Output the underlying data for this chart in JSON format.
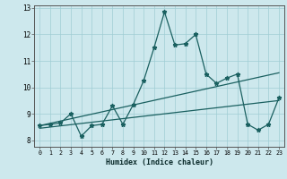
{
  "xlabel": "Humidex (Indice chaleur)",
  "xlim": [
    -0.5,
    23.5
  ],
  "ylim": [
    7.75,
    13.1
  ],
  "yticks": [
    8,
    9,
    10,
    11,
    12,
    13
  ],
  "xticks": [
    0,
    1,
    2,
    3,
    4,
    5,
    6,
    7,
    8,
    9,
    10,
    11,
    12,
    13,
    14,
    15,
    16,
    17,
    18,
    19,
    20,
    21,
    22,
    23
  ],
  "bg_color": "#cde8ed",
  "grid_color": "#a0cdd4",
  "line_color": "#1a6060",
  "line1_x": [
    0,
    1,
    2,
    3,
    4,
    5,
    6,
    7,
    8,
    9,
    10,
    11,
    12,
    13,
    14,
    15,
    16,
    17,
    18,
    19,
    20,
    21,
    22,
    23
  ],
  "line1_y": [
    8.55,
    8.6,
    8.65,
    9.0,
    8.15,
    8.55,
    8.6,
    9.3,
    8.6,
    9.35,
    10.25,
    11.5,
    12.85,
    11.6,
    11.65,
    12.0,
    10.5,
    10.15,
    10.35,
    10.5,
    8.6,
    8.38,
    8.6,
    9.6
  ],
  "line2_x": [
    0,
    23
  ],
  "line2_y": [
    8.55,
    10.55
  ],
  "line3_x": [
    0,
    23
  ],
  "line3_y": [
    8.45,
    9.5
  ]
}
